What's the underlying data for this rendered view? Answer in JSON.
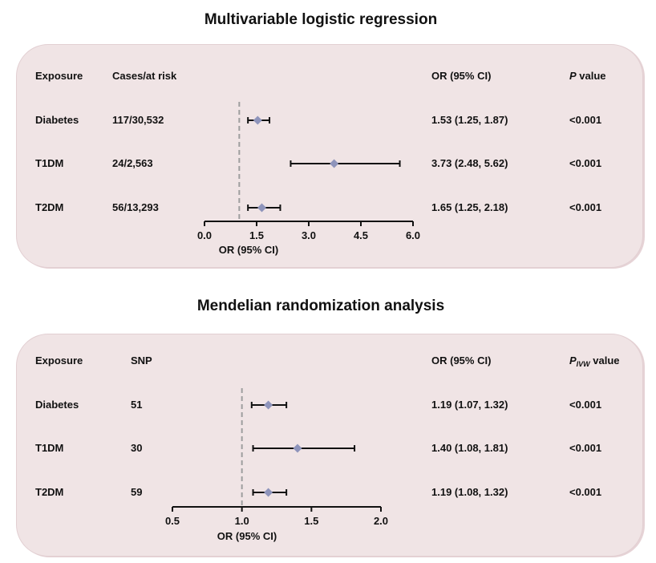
{
  "chart_data": [
    {
      "type": "forest",
      "title": "Multivariable logistic regression",
      "columns": {
        "exposure": "Exposure",
        "count": "Cases/at risk",
        "or": "OR (95% CI)",
        "p_main": "P",
        "p_rest": " value"
      },
      "rows": [
        {
          "exposure": "Diabetes",
          "count": "117/30,532",
          "or_text": "1.53 (1.25, 1.87)",
          "p": "<0.001",
          "or": 1.53,
          "lo": 1.25,
          "hi": 1.87
        },
        {
          "exposure": "T1DM",
          "count": "24/2,563",
          "or_text": "3.73 (2.48, 5.62)",
          "p": "<0.001",
          "or": 3.73,
          "lo": 2.48,
          "hi": 5.62
        },
        {
          "exposure": "T2DM",
          "count": "56/13,293",
          "or_text": "1.65 (1.25, 2.18)",
          "p": "<0.001",
          "or": 1.65,
          "lo": 1.25,
          "hi": 2.18
        }
      ],
      "xlabel": "OR (95% CI)",
      "xlim": [
        0.0,
        6.0
      ],
      "xticks": [
        "0.0",
        "1.5",
        "3.0",
        "4.5",
        "6.0"
      ],
      "reference_line": 1.0
    },
    {
      "type": "forest",
      "title": "Mendelian randomization analysis",
      "columns": {
        "exposure": "Exposure",
        "count": "SNP",
        "or": "OR (95% CI)",
        "p_main": "P",
        "p_sub": "IVW",
        "p_rest": " value"
      },
      "rows": [
        {
          "exposure": "Diabetes",
          "count": "51",
          "or_text": "1.19 (1.07, 1.32)",
          "p": "<0.001",
          "or": 1.19,
          "lo": 1.07,
          "hi": 1.32
        },
        {
          "exposure": "T1DM",
          "count": "30",
          "or_text": "1.40 (1.08, 1.81)",
          "p": "<0.001",
          "or": 1.4,
          "lo": 1.08,
          "hi": 1.81
        },
        {
          "exposure": "T2DM",
          "count": "59",
          "or_text": "1.19 (1.08, 1.32)",
          "p": "<0.001",
          "or": 1.19,
          "lo": 1.08,
          "hi": 1.32
        }
      ],
      "xlabel": "OR (95% CI)",
      "xlim": [
        0.5,
        2.0
      ],
      "xticks": [
        "0.5",
        "1.0",
        "1.5",
        "2.0"
      ],
      "reference_line": 1.0
    }
  ],
  "colors": {
    "panel_bg": "#f0e4e5",
    "marker": "#8e94bb",
    "reference_line": "#9e9e9e",
    "ink": "#111111"
  }
}
